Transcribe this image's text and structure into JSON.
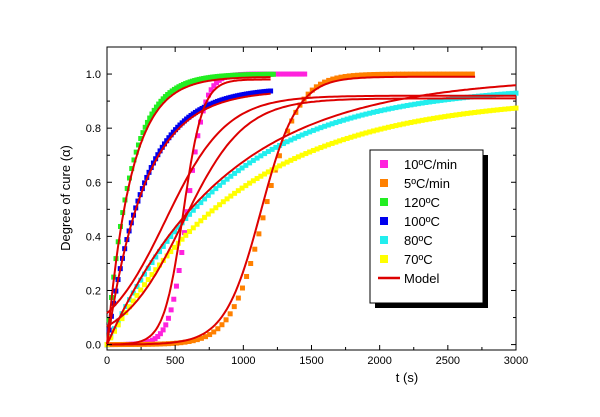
{
  "chart_data": {
    "type": "scatter",
    "title": "",
    "xlabel": "t (s)",
    "ylabel": "Degree of cure (α)",
    "xlim": [
      0,
      3000
    ],
    "ylim": [
      -0.02,
      1.1
    ],
    "x_ticks": [
      0,
      500,
      1000,
      1500,
      2000,
      2500,
      3000
    ],
    "x_tick_labels": [
      "0",
      "500",
      "1000",
      "1500",
      "2000",
      "2500",
      "3000"
    ],
    "y_ticks": [
      0.0,
      0.2,
      0.4,
      0.6,
      0.8,
      1.0
    ],
    "y_tick_labels": [
      "0.0",
      "0.2",
      "0.4",
      "0.6",
      "0.8",
      "1.0"
    ],
    "legend_position": "right",
    "series": [
      {
        "name": "10ºC/min",
        "color": "#ff22dd",
        "marker": "square",
        "model": "sigmoid",
        "k": 0.016,
        "t0": 590,
        "end": 0.02,
        "tmax": 1450,
        "ymax": 1.0,
        "n": 75
      },
      {
        "name": "5ºC/min",
        "color": "#ff8000",
        "marker": "square",
        "model": "sigmoid",
        "k": 0.008,
        "t0": 1160,
        "end": 0.02,
        "tmax": 2680,
        "ymax": 1.0,
        "n": 90
      },
      {
        "name": "120ºC",
        "color": "#22ee22",
        "marker": "square",
        "model": "exp",
        "k": 0.0058,
        "end": 0.0,
        "tmax": 1220,
        "ymax": 1.0,
        "n": 75
      },
      {
        "name": "100ºC",
        "color": "#0000ee",
        "marker": "square",
        "model": "exp",
        "k": 0.0036,
        "end": 0.0,
        "tmax": 1200,
        "ymax": 0.95,
        "n": 75
      },
      {
        "name": "80ºC",
        "color": "#22eeee",
        "marker": "square",
        "model": "exp",
        "k": 0.00115,
        "end": 0.0,
        "tmax": 3000,
        "ymax": 0.96,
        "n": 110
      },
      {
        "name": "70ºC",
        "color": "#ffff00",
        "marker": "square",
        "model": "exp",
        "k": 0.001,
        "end": 0.0,
        "tmax": 3000,
        "ymax": 0.92,
        "n": 110
      }
    ],
    "model_series": {
      "name": "Model",
      "color": "#dd0000",
      "curves": [
        {
          "model": "sigmoid",
          "k": 0.014,
          "t0": 560,
          "tmax": 1200,
          "ymax": 0.98
        },
        {
          "model": "sigmoid",
          "k": 0.0075,
          "t0": 1130,
          "tmax": 2700,
          "ymax": 0.99
        },
        {
          "model": "exp",
          "k": 0.0056,
          "tmax": 1200,
          "ymax": 0.99
        },
        {
          "model": "exp",
          "k": 0.0036,
          "tmax": 1200,
          "ymax": 0.94
        },
        {
          "model": "logistic",
          "k": 0.0045,
          "t0": 430,
          "tmax": 3000,
          "ymax": 0.92
        },
        {
          "model": "logistic",
          "k": 0.0045,
          "t0": 560,
          "tmax": 3000,
          "ymax": 0.91
        },
        {
          "model": "exp",
          "k": 0.00115,
          "tmax": 3000,
          "ymax": 0.99
        }
      ]
    }
  }
}
